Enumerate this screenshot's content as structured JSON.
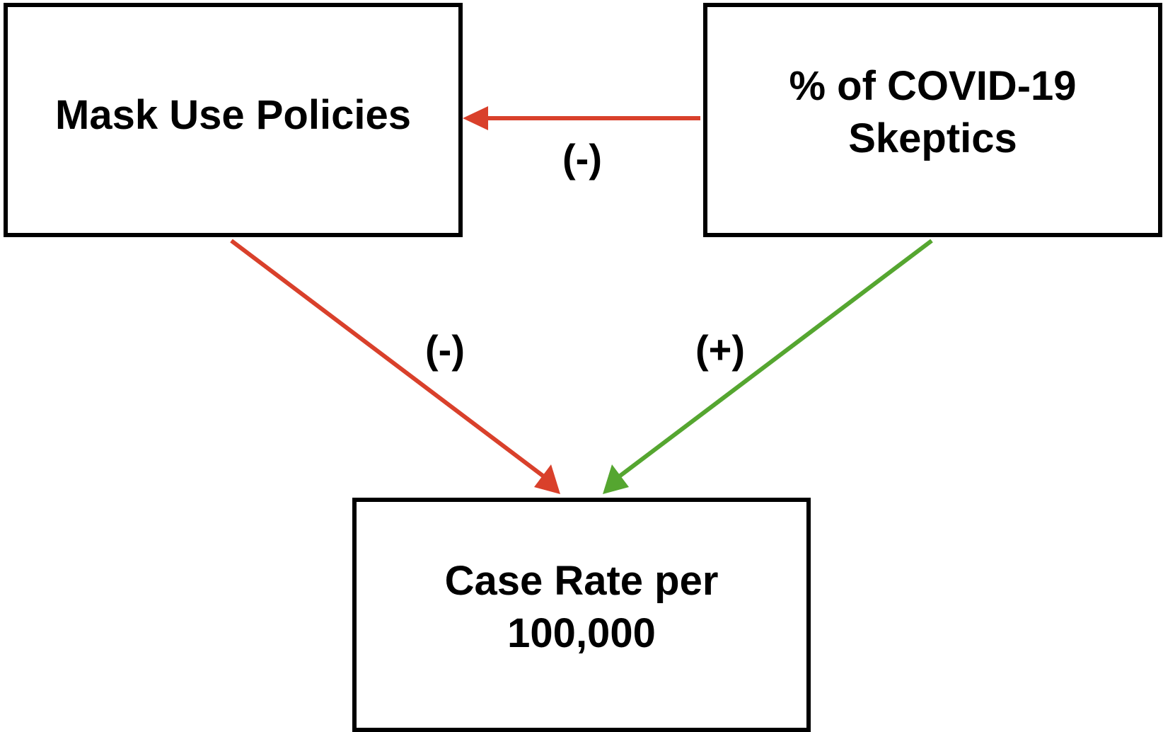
{
  "nodes": {
    "mask": {
      "label": "Mask Use Policies"
    },
    "skeptics": {
      "label": "% of COVID-19 Skeptics"
    },
    "case": {
      "label": "Case Rate per 100,000"
    }
  },
  "edges": [
    {
      "from": "skeptics",
      "to": "mask",
      "sign": "(-)",
      "color": "#d9402b"
    },
    {
      "from": "mask",
      "to": "case",
      "sign": "(-)",
      "color": "#d9402b"
    },
    {
      "from": "skeptics",
      "to": "case",
      "sign": "(+)",
      "color": "#55a630"
    }
  ]
}
